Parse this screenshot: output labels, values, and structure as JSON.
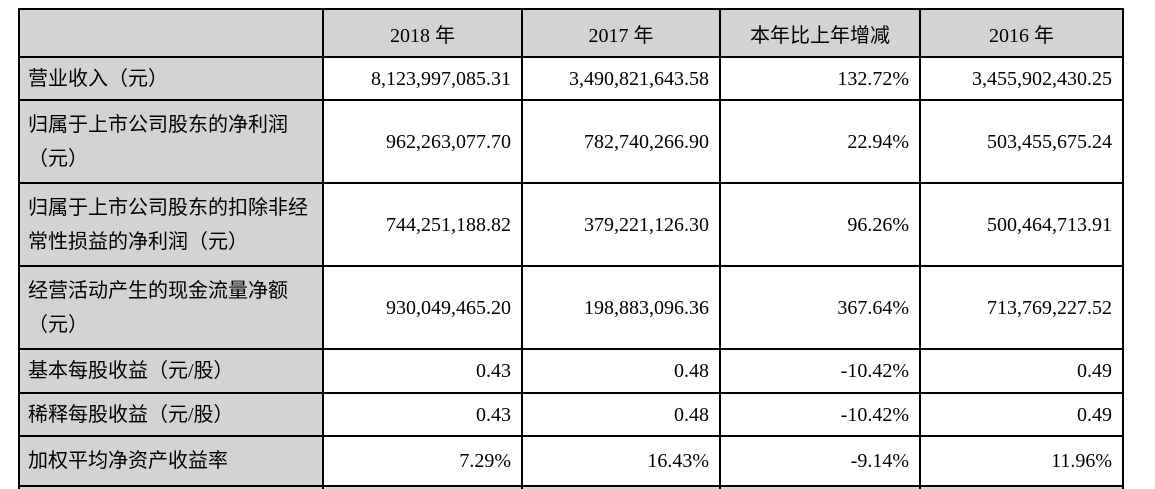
{
  "table": {
    "columns": [
      "",
      "2018 年",
      "2017 年",
      "本年比上年增减",
      "2016 年"
    ],
    "rows": [
      {
        "label": "营业收入（元）",
        "values": [
          "8,123,997,085.31",
          "3,490,821,643.58",
          "132.72%",
          "3,455,902,430.25"
        ]
      },
      {
        "label": "归属于上市公司股东的净利润\n（元）",
        "values": [
          "962,263,077.70",
          "782,740,266.90",
          "22.94%",
          "503,455,675.24"
        ]
      },
      {
        "label": "归属于上市公司股东的扣除非经\n常性损益的净利润（元）",
        "values": [
          "744,251,188.82",
          "379,221,126.30",
          "96.26%",
          "500,464,713.91"
        ]
      },
      {
        "label": "经营活动产生的现金流量净额\n（元）",
        "values": [
          "930,049,465.20",
          "198,883,096.36",
          "367.64%",
          "713,769,227.52"
        ]
      },
      {
        "label": "基本每股收益（元/股）",
        "values": [
          "0.43",
          "0.48",
          "-10.42%",
          "0.49"
        ]
      },
      {
        "label": "稀释每股收益（元/股）",
        "values": [
          "0.43",
          "0.48",
          "-10.42%",
          "0.49"
        ]
      },
      {
        "label": "加权平均净资产收益率",
        "values": [
          "7.29%",
          "16.43%",
          "-9.14%",
          "11.96%"
        ]
      }
    ],
    "colors": {
      "header_background": "#d3d3d3",
      "label_background": "#d3d3d3",
      "border": "#000000",
      "text": "#000000",
      "page_background": "#ffffff"
    }
  }
}
